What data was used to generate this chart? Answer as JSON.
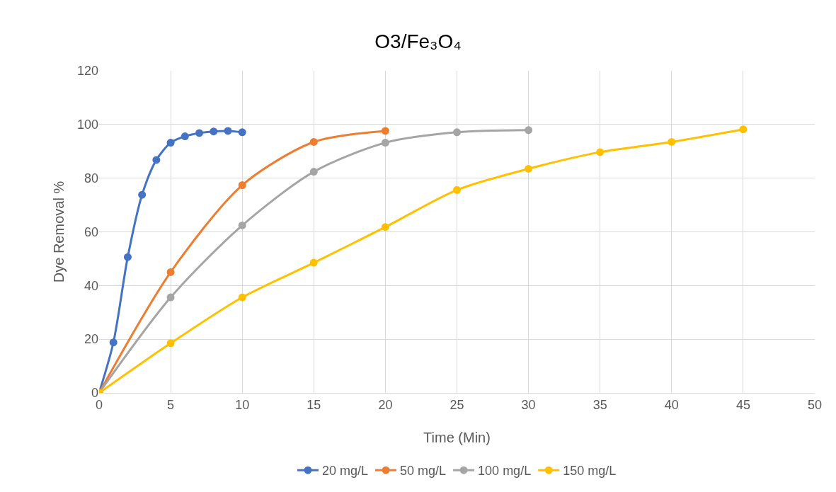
{
  "chart_data": {
    "type": "line",
    "title": "O3/Fe₃O₄",
    "xlabel": "Time (Min)",
    "ylabel": "Dye Removal %",
    "xlim": [
      0,
      50
    ],
    "xticks": [
      0,
      5,
      10,
      15,
      20,
      25,
      30,
      35,
      40,
      45,
      50
    ],
    "ylim": [
      0,
      120
    ],
    "yticks": [
      0,
      20,
      40,
      60,
      80,
      100,
      120
    ],
    "grid": true,
    "legend": "bottom",
    "marker": "circle",
    "line_style": "solid",
    "series": [
      {
        "name": "20 mg/L",
        "color": "#4472c4",
        "x": [
          0,
          1,
          2,
          3,
          4,
          5,
          6,
          7,
          8,
          9,
          10
        ],
        "values": [
          0,
          18.8,
          50.6,
          73.8,
          86.8,
          93.2,
          95.6,
          96.8,
          97.4,
          97.6,
          97.1
        ]
      },
      {
        "name": "50 mg/L",
        "color": "#ed7d31",
        "x": [
          0,
          5,
          10,
          15,
          20
        ],
        "values": [
          0,
          45,
          77.4,
          93.5,
          97.6
        ]
      },
      {
        "name": "100 mg/L",
        "color": "#a5a5a5",
        "x": [
          0,
          5,
          10,
          15,
          20,
          25,
          30
        ],
        "values": [
          0,
          35.6,
          62.4,
          82.4,
          93.2,
          97.1,
          97.9
        ]
      },
      {
        "name": "150 mg/L",
        "color": "#ffc000",
        "x": [
          0,
          5,
          10,
          15,
          20,
          25,
          30,
          35,
          40,
          45
        ],
        "values": [
          0,
          18.5,
          35.6,
          48.5,
          61.8,
          75.6,
          83.5,
          89.7,
          93.5,
          98.2
        ]
      }
    ]
  }
}
